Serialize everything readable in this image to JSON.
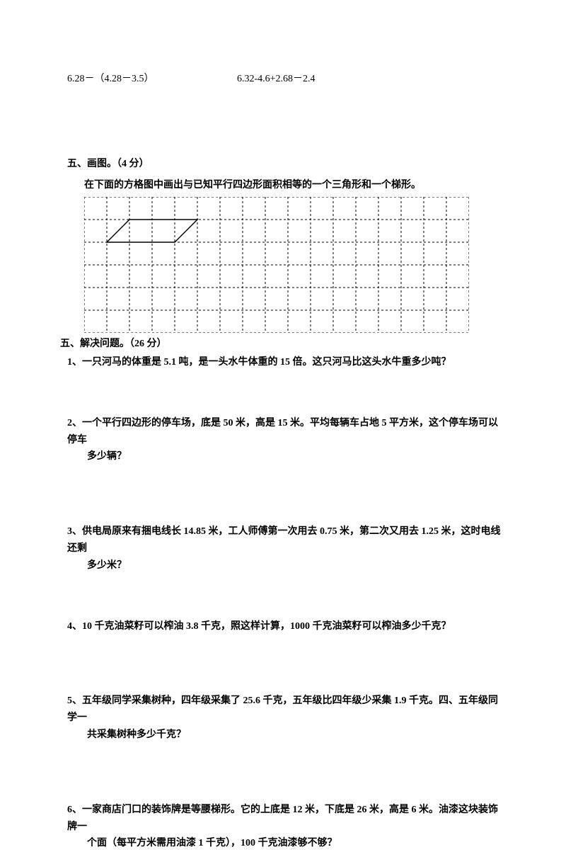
{
  "expressions": {
    "left": "6.28－（4.28－3.5）",
    "right": "6.32-4.6+2.68－2.4"
  },
  "section_draw": {
    "header": "五、画图。（4 分）",
    "instruction": "在下面的方格图中画出与已知平行四边形面积相等的一个三角形和一个梯形。"
  },
  "grid": {
    "cols": 17,
    "rows": 6,
    "cell_size": 32,
    "stroke_color": "#000000",
    "dash": "3,3",
    "parallelogram": {
      "points": [
        {
          "x": 2,
          "y": 1
        },
        {
          "x": 5,
          "y": 1
        },
        {
          "x": 4,
          "y": 2
        },
        {
          "x": 1,
          "y": 2
        }
      ]
    }
  },
  "section_solve": {
    "header": "五、解决问题。（26 分）"
  },
  "questions": [
    {
      "num": "1、",
      "text": "一只河马的体重是 5.1 吨，是一头水牛体重的 15 倍。这只河马比这头水牛重多少吨？",
      "indent": ""
    },
    {
      "num": "2、",
      "text": "一个平行四边形的停车场，底是 50 米，高是 15 米。平均每辆车占地 5 平方米，这个停车场可以停车",
      "indent": "多少辆？"
    },
    {
      "num": "3、",
      "text": "供电局原来有捆电线长 14.85 米，工人师傅第一次用去 0.75 米，第二次又用去 1.25 米，这时电线还剩",
      "indent": "多少米？"
    },
    {
      "num": "4、",
      "text": "10 千克油菜籽可以榨油 3.8 千克，照这样计算，1000 千克油菜籽可以榨油多少千克？",
      "indent": ""
    },
    {
      "num": "5、",
      "text": "五年级同学采集树种，四年级采集了 25.6 千克，五年级比四年级少采集 1.9 千克。四、五年级同学一",
      "indent": "共采集树种多少千克？"
    },
    {
      "num": "6、",
      "text": "一家商店门口的装饰牌是等腰梯形。它的上底是 12 米，下底是 26 米，高是 6 米。油漆这块装饰牌一",
      "indent": "个面（每平方米需用油漆 1 千克），100 千克油漆够不够？"
    }
  ]
}
